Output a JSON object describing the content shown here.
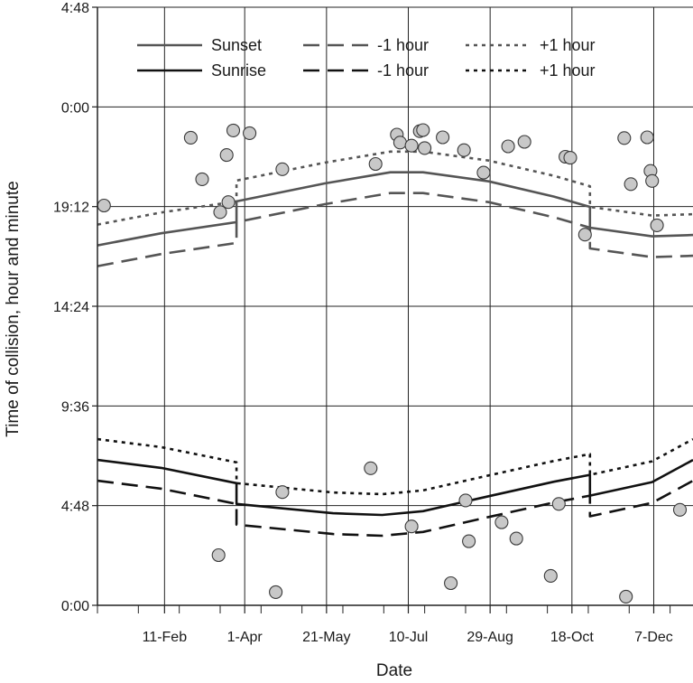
{
  "chart_data": {
    "type": "scatter",
    "xlabel": "Date",
    "ylabel": "Time of collision, hour and minute",
    "x_unit": "day of year",
    "x_range": [
      1,
      365
    ],
    "x_ticks": [
      {
        "label": "11-Feb",
        "day": 42
      },
      {
        "label": "1-Apr",
        "day": 91
      },
      {
        "label": "21-May",
        "day": 141
      },
      {
        "label": "10-Jul",
        "day": 191
      },
      {
        "label": "29-Aug",
        "day": 241
      },
      {
        "label": "18-Oct",
        "day": 291
      },
      {
        "label": "7-Dec",
        "day": 341
      }
    ],
    "y_range_minutes": [
      0,
      1728
    ],
    "y_ticks": [
      {
        "label": "0:00",
        "minutes": 0
      },
      {
        "label": "4:48",
        "minutes": 288
      },
      {
        "label": "9:36",
        "minutes": 576
      },
      {
        "label": "14:24",
        "minutes": 864
      },
      {
        "label": "19:12",
        "minutes": 1152
      },
      {
        "label": "0:00",
        "minutes": 1440
      },
      {
        "label": "4:48",
        "minutes": 1728
      }
    ],
    "grid": true,
    "legend_position": "top",
    "legend": [
      {
        "label": "Sunset",
        "style": "solid",
        "color": "#555555"
      },
      {
        "label": "-1 hour",
        "style": "dashed",
        "color": "#555555"
      },
      {
        "label": "+1 hour",
        "style": "dotted",
        "color": "#555555"
      },
      {
        "label": "Sunrise",
        "style": "solid",
        "color": "#111111"
      },
      {
        "label": "-1 hour",
        "style": "dashed",
        "color": "#111111"
      },
      {
        "label": "+1 hour",
        "style": "dotted",
        "color": "#111111"
      }
    ],
    "series": [
      {
        "name": "Sunset",
        "style": "solid",
        "color": "#555555",
        "points": [
          [
            1,
            1040
          ],
          [
            40,
            1075
          ],
          [
            86,
            1107
          ],
          [
            86,
            1167
          ],
          [
            140,
            1219
          ],
          [
            180,
            1251
          ],
          [
            200,
            1251
          ],
          [
            240,
            1225
          ],
          [
            280,
            1181
          ],
          [
            302,
            1151
          ],
          [
            302,
            1091
          ],
          [
            340,
            1066
          ],
          [
            365,
            1070
          ]
        ]
      },
      {
        "name": "-1 hour",
        "style": "dashed",
        "color": "#555555",
        "points": [
          [
            1,
            980
          ],
          [
            40,
            1015
          ],
          [
            86,
            1047
          ],
          [
            86,
            1107
          ],
          [
            140,
            1159
          ],
          [
            180,
            1191
          ],
          [
            200,
            1191
          ],
          [
            240,
            1165
          ],
          [
            280,
            1121
          ],
          [
            302,
            1091
          ],
          [
            302,
            1031
          ],
          [
            340,
            1006
          ],
          [
            365,
            1010
          ]
        ]
      },
      {
        "name": "+1 hour",
        "style": "dotted",
        "color": "#555555",
        "points": [
          [
            1,
            1100
          ],
          [
            40,
            1135
          ],
          [
            86,
            1167
          ],
          [
            86,
            1227
          ],
          [
            140,
            1279
          ],
          [
            180,
            1311
          ],
          [
            200,
            1311
          ],
          [
            240,
            1285
          ],
          [
            280,
            1241
          ],
          [
            302,
            1211
          ],
          [
            302,
            1151
          ],
          [
            340,
            1126
          ],
          [
            365,
            1130
          ]
        ]
      },
      {
        "name": "Sunrise",
        "style": "solid",
        "color": "#111111",
        "points": [
          [
            1,
            420
          ],
          [
            40,
            397
          ],
          [
            86,
            353
          ],
          [
            86,
            293
          ],
          [
            145,
            266
          ],
          [
            175,
            261
          ],
          [
            200,
            272
          ],
          [
            240,
            315
          ],
          [
            280,
            357
          ],
          [
            302,
            377
          ],
          [
            302,
            317
          ],
          [
            340,
            356
          ],
          [
            365,
            420
          ]
        ]
      },
      {
        "name": "-1 hour",
        "style": "dashed",
        "color": "#111111",
        "points": [
          [
            1,
            360
          ],
          [
            40,
            337
          ],
          [
            86,
            293
          ],
          [
            86,
            233
          ],
          [
            145,
            206
          ],
          [
            175,
            201
          ],
          [
            200,
            212
          ],
          [
            240,
            255
          ],
          [
            280,
            297
          ],
          [
            302,
            317
          ],
          [
            302,
            257
          ],
          [
            340,
            296
          ],
          [
            365,
            360
          ]
        ]
      },
      {
        "name": "+1 hour",
        "style": "dotted",
        "color": "#111111",
        "points": [
          [
            1,
            480
          ],
          [
            40,
            457
          ],
          [
            86,
            413
          ],
          [
            86,
            353
          ],
          [
            145,
            326
          ],
          [
            175,
            321
          ],
          [
            200,
            332
          ],
          [
            240,
            375
          ],
          [
            280,
            417
          ],
          [
            302,
            437
          ],
          [
            302,
            377
          ],
          [
            340,
            416
          ],
          [
            365,
            480
          ]
        ]
      }
    ],
    "scatter": [
      [
        5,
        1155
      ],
      [
        58,
        1351
      ],
      [
        65,
        1231
      ],
      [
        76,
        1136
      ],
      [
        80,
        1301
      ],
      [
        81,
        1165
      ],
      [
        84,
        1372
      ],
      [
        94,
        1364
      ],
      [
        114,
        1260
      ],
      [
        171,
        1275
      ],
      [
        184,
        1360
      ],
      [
        186,
        1337
      ],
      [
        193,
        1328
      ],
      [
        198,
        1370
      ],
      [
        200,
        1373
      ],
      [
        201,
        1321
      ],
      [
        212,
        1352
      ],
      [
        225,
        1315
      ],
      [
        237,
        1250
      ],
      [
        252,
        1326
      ],
      [
        262,
        1339
      ],
      [
        287,
        1296
      ],
      [
        290,
        1293
      ],
      [
        299,
        1071
      ],
      [
        323,
        1350
      ],
      [
        327,
        1217
      ],
      [
        337,
        1352
      ],
      [
        339,
        1255
      ],
      [
        340,
        1226
      ],
      [
        343,
        1098
      ],
      [
        75,
        145
      ],
      [
        114,
        327
      ],
      [
        168,
        396
      ],
      [
        193,
        228
      ],
      [
        217,
        64
      ],
      [
        226,
        303
      ],
      [
        228,
        185
      ],
      [
        248,
        240
      ],
      [
        257,
        193
      ],
      [
        278,
        85
      ],
      [
        283,
        293
      ],
      [
        324,
        25
      ],
      [
        357,
        276
      ],
      [
        110,
        38
      ]
    ],
    "scatter_color": "#c8c8c8"
  }
}
